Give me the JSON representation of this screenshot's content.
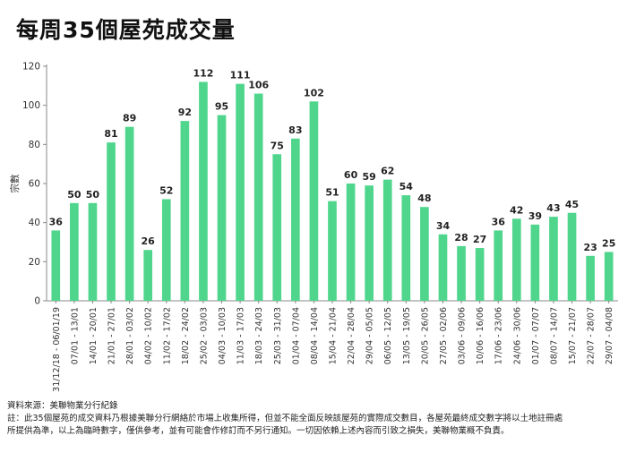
{
  "title": "每周35個屋苑成交量",
  "chart_data": {
    "type": "bar",
    "title": "每周35個屋苑成交量",
    "xlabel": "",
    "ylabel": "宗數",
    "ylim": [
      0,
      120
    ],
    "yticks": [
      0,
      20,
      40,
      60,
      80,
      100,
      120
    ],
    "grid": false,
    "bar_color": "#4fd68c",
    "categories": [
      "31/12/18 - 06/01/19",
      "07/01 - 13/01",
      "14/01 - 20/01",
      "21/01 - 27/01",
      "28/01 - 03/02",
      "04/02 - 10/02",
      "11/02 - 17/02",
      "18/02 - 24/02",
      "25/02 - 03/03",
      "04/03 - 10/03",
      "11/03 - 17/03",
      "18/03 - 24/03",
      "25/03 - 31/03",
      "01/04 - 07/04",
      "08/04 - 14/04",
      "15/04 - 21/04",
      "22/04 - 28/04",
      "29/04 - 05/05",
      "06/05 - 12/05",
      "13/05 - 19/05",
      "20/05 - 26/05",
      "27/05 - 02/06",
      "03/06 - 09/06",
      "10/06 - 16/06",
      "17/06 - 23/06",
      "24/06 - 30/06",
      "01/07 - 07/07",
      "08/07 - 14/07",
      "15/07 - 21/07",
      "22/07 - 28/07",
      "29/07 - 04/08"
    ],
    "values": [
      36,
      50,
      50,
      81,
      89,
      26,
      52,
      92,
      112,
      95,
      111,
      106,
      75,
      83,
      102,
      51,
      60,
      59,
      62,
      54,
      48,
      34,
      28,
      27,
      36,
      42,
      39,
      43,
      45,
      23,
      25
    ]
  },
  "footer": {
    "source": "資料來源：美聯物業分行紀錄",
    "note_line1": "註：此35個屋苑的成交資料乃根據美聯分行網絡於市場上收集所得，但並不能全面反映該屋苑的實際成交數目，各屋苑最終成交數字將以土地註冊處",
    "note_line2": "所提供為準，以上為臨時數字，僅供參考，並有可能會作修訂而不另行通知。一切因依賴上述內容而引致之損失，美聯物業概不負責。"
  }
}
